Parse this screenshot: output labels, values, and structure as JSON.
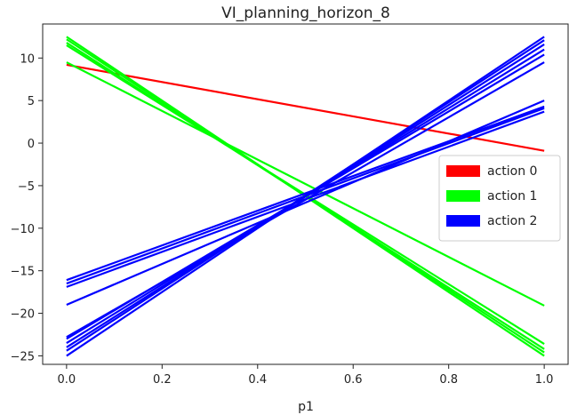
{
  "chart_data": {
    "type": "line",
    "title": "VI_planning_horizon_8",
    "xlabel": "p1",
    "ylabel": "",
    "xlim": [
      -0.05,
      1.05
    ],
    "ylim": [
      -26,
      14
    ],
    "x_ticks": [
      0.0,
      0.2,
      0.4,
      0.6,
      0.8,
      1.0
    ],
    "x_tick_labels": [
      "0.0",
      "0.2",
      "0.4",
      "0.6",
      "0.8",
      "1.0"
    ],
    "y_ticks": [
      10,
      5,
      0,
      -5,
      -10,
      -15,
      -20,
      -25
    ],
    "y_tick_labels": [
      "10",
      "5",
      "0",
      "−5",
      "−10",
      "−15",
      "−20",
      "−25"
    ],
    "grid": false,
    "legend_position": "center-right",
    "series": [
      {
        "name": "action 0",
        "color": "#ff0000",
        "lines": [
          {
            "x": [
              0,
              1
            ],
            "y": [
              9.2,
              -0.9
            ]
          }
        ]
      },
      {
        "name": "action 1",
        "color": "#00ff00",
        "lines": [
          {
            "x": [
              0,
              1
            ],
            "y": [
              12.5,
              -25.0
            ]
          },
          {
            "x": [
              0,
              1
            ],
            "y": [
              12.2,
              -24.6
            ]
          },
          {
            "x": [
              0,
              1
            ],
            "y": [
              11.8,
              -24.2
            ]
          },
          {
            "x": [
              0,
              1
            ],
            "y": [
              11.5,
              -23.6
            ]
          },
          {
            "x": [
              0,
              1
            ],
            "y": [
              9.5,
              -19.1
            ]
          }
        ]
      },
      {
        "name": "action 2",
        "color": "#0000ff",
        "lines": [
          {
            "x": [
              0,
              1
            ],
            "y": [
              -25.0,
              12.5
            ]
          },
          {
            "x": [
              0,
              1
            ],
            "y": [
              -24.4,
              12.1
            ]
          },
          {
            "x": [
              0,
              1
            ],
            "y": [
              -24.0,
              11.6
            ]
          },
          {
            "x": [
              0,
              1
            ],
            "y": [
              -23.5,
              11.0
            ]
          },
          {
            "x": [
              0,
              1
            ],
            "y": [
              -23.0,
              10.4
            ]
          },
          {
            "x": [
              0,
              1
            ],
            "y": [
              -22.8,
              9.5
            ]
          },
          {
            "x": [
              0,
              1
            ],
            "y": [
              -16.9,
              3.7
            ]
          },
          {
            "x": [
              0,
              1
            ],
            "y": [
              -16.5,
              4.1
            ]
          },
          {
            "x": [
              0,
              1
            ],
            "y": [
              -16.1,
              4.3
            ]
          },
          {
            "x": [
              0,
              1
            ],
            "y": [
              -19.0,
              5.0
            ]
          }
        ]
      }
    ]
  }
}
